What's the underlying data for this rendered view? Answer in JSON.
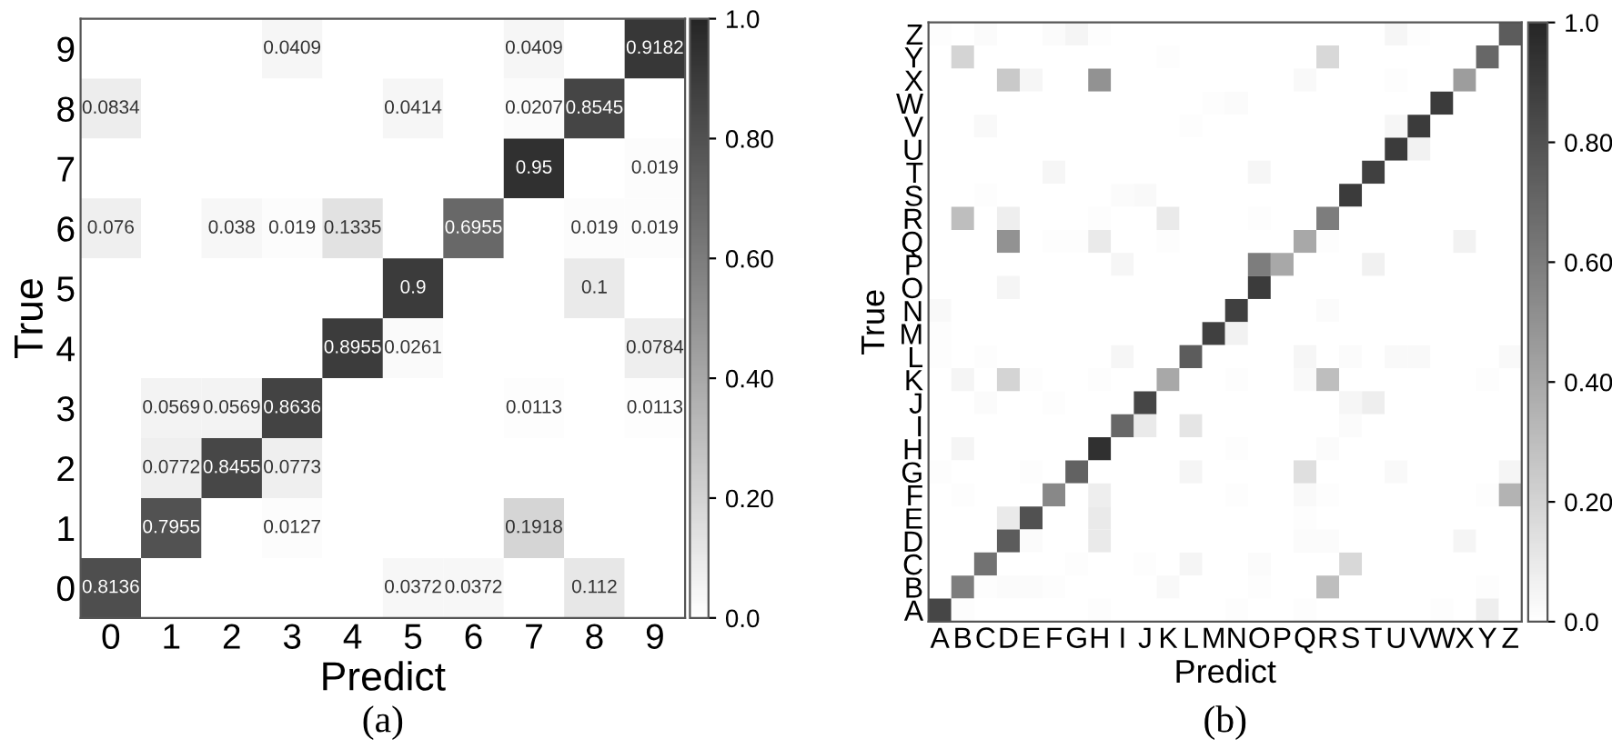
{
  "chart_data": [
    {
      "type": "heatmap",
      "xlabel": "Predict",
      "ylabel": "True",
      "annotations": [
        "(a)"
      ],
      "categories": [
        "0",
        "1",
        "2",
        "3",
        "4",
        "5",
        "6",
        "7",
        "8",
        "9"
      ],
      "y_categories": [
        "9",
        "8",
        "7",
        "6",
        "5",
        "4",
        "3",
        "2",
        "1",
        "0"
      ],
      "colors": [
        "#ffffff",
        "#262626"
      ],
      "clim": [
        0,
        1
      ],
      "cticks": [
        {
          "value": 0,
          "label": "0.0"
        },
        {
          "value": 0.2,
          "label": "0.20"
        },
        {
          "value": 0.4,
          "label": "0.40"
        },
        {
          "value": 0.6,
          "label": "0.60"
        },
        {
          "value": 0.8,
          "label": "0.80"
        },
        {
          "value": 1,
          "label": "1.0"
        }
      ],
      "cells": [
        [
          0,
          0,
          0,
          0.0409,
          0,
          0,
          0,
          0.0409,
          0,
          0.9182
        ],
        [
          0.0834,
          0,
          0,
          0,
          0,
          0.0414,
          0,
          0.0207,
          0.8545,
          0
        ],
        [
          0,
          0,
          0,
          0,
          0,
          0,
          0,
          0.95,
          0,
          0.019
        ],
        [
          0.076,
          0,
          0.038,
          0.019,
          0.1335,
          0,
          0.6955,
          0,
          0.019,
          0.019
        ],
        [
          0,
          0,
          0,
          0,
          0,
          0.9,
          0,
          0,
          0.1,
          0
        ],
        [
          0,
          0,
          0,
          0,
          0.8955,
          0.0261,
          0,
          0,
          0,
          0.0784
        ],
        [
          0,
          0.0569,
          0.0569,
          0.8636,
          0,
          0,
          0,
          0.0113,
          0,
          0.0113
        ],
        [
          0,
          0.0772,
          0.8455,
          0.0773,
          0,
          0,
          0,
          0,
          0,
          0
        ],
        [
          0,
          0.7955,
          0,
          0.0127,
          0,
          0,
          0,
          0.1918,
          0,
          0
        ],
        [
          0.8136,
          0,
          0,
          0,
          0,
          0.0372,
          0.0372,
          0,
          0.112,
          0
        ]
      ],
      "cell_labels": [
        [
          null,
          null,
          null,
          "0.0409",
          null,
          null,
          null,
          "0.0409",
          null,
          "0.9182"
        ],
        [
          "0.0834",
          null,
          null,
          null,
          null,
          "0.0414",
          null,
          "0.0207",
          "0.8545",
          null
        ],
        [
          null,
          null,
          null,
          null,
          null,
          null,
          null,
          "0.95",
          null,
          "0.019"
        ],
        [
          "0.076",
          null,
          "0.038",
          "0.019",
          "0.1335",
          null,
          "0.6955",
          null,
          "0.019",
          "0.019"
        ],
        [
          null,
          null,
          null,
          null,
          null,
          "0.9",
          null,
          null,
          "0.1",
          null
        ],
        [
          null,
          null,
          null,
          null,
          "0.8955",
          "0.0261",
          null,
          null,
          null,
          "0.0784"
        ],
        [
          null,
          "0.0569",
          "0.0569",
          "0.8636",
          null,
          null,
          null,
          "0.0113",
          null,
          "0.0113"
        ],
        [
          null,
          "0.0772",
          "0.8455",
          "0.0773",
          null,
          null,
          null,
          null,
          null,
          null
        ],
        [
          null,
          "0.7955",
          null,
          "0.0127",
          null,
          null,
          null,
          "0.1918",
          null,
          null
        ],
        [
          "0.8136",
          null,
          null,
          null,
          null,
          "0.0372",
          "0.0372",
          null,
          "0.112",
          null
        ]
      ]
    },
    {
      "type": "heatmap",
      "xlabel": "Predict",
      "ylabel": "True",
      "annotations": [
        "(b)"
      ],
      "categories": [
        "A",
        "B",
        "C",
        "D",
        "E",
        "F",
        "G",
        "H",
        "I",
        "J",
        "K",
        "L",
        "M",
        "N",
        "O",
        "P",
        "Q",
        "R",
        "S",
        "T",
        "U",
        "V",
        "W",
        "X",
        "Y",
        "Z"
      ],
      "y_categories": [
        "Z",
        "Y",
        "X",
        "W",
        "V",
        "U",
        "T",
        "S",
        "R",
        "Q",
        "P",
        "O",
        "N",
        "M",
        "L",
        "K",
        "J",
        "I",
        "H",
        "G",
        "F",
        "E",
        "D",
        "C",
        "B",
        "A"
      ],
      "colors": [
        "#ffffff",
        "#262626"
      ],
      "clim": [
        0,
        1
      ],
      "cticks": [
        {
          "value": 0,
          "label": "0.0"
        },
        {
          "value": 0.2,
          "label": "0.20"
        },
        {
          "value": 0.4,
          "label": "0.40"
        },
        {
          "value": 0.6,
          "label": "0.60"
        },
        {
          "value": 0.8,
          "label": "0.80"
        },
        {
          "value": 1,
          "label": "1.0"
        }
      ],
      "cells": [
        [
          0.01,
          0,
          0.02,
          0,
          0,
          0.02,
          0.05,
          0.01,
          0,
          0,
          0,
          0,
          0,
          0,
          0,
          0,
          0,
          0,
          0,
          0,
          0.04,
          0.01,
          0,
          0,
          0,
          0.75
        ],
        [
          0,
          0.2,
          0,
          0,
          0,
          0,
          0,
          0,
          0,
          0,
          0.01,
          0,
          0,
          0,
          0,
          0,
          0,
          0.18,
          0,
          0,
          0,
          0,
          0,
          0,
          0.7,
          0
        ],
        [
          0,
          0,
          0,
          0.25,
          0.04,
          0,
          0,
          0.5,
          0,
          0,
          0,
          0,
          0,
          0,
          0,
          0,
          0.03,
          0,
          0,
          0,
          0.01,
          0,
          0,
          0.45,
          0,
          0
        ],
        [
          0,
          0,
          0,
          0,
          0,
          0,
          0,
          0,
          0,
          0,
          0,
          0,
          0.01,
          0.02,
          0,
          0,
          0,
          0,
          0,
          0,
          0,
          0,
          0.9,
          0,
          0,
          0
        ],
        [
          0,
          0,
          0.03,
          0,
          0,
          0,
          0,
          0,
          0,
          0,
          0,
          0.01,
          0,
          0,
          0,
          0,
          0,
          0,
          0,
          0,
          0.04,
          0.9,
          0,
          0,
          0,
          0
        ],
        [
          0,
          0,
          0,
          0,
          0,
          0,
          0,
          0,
          0,
          0,
          0,
          0,
          0,
          0,
          0,
          0,
          0,
          0,
          0,
          0,
          0.9,
          0.06,
          0,
          0,
          0,
          0
        ],
        [
          0,
          0,
          0,
          0,
          0,
          0.04,
          0,
          0,
          0,
          0,
          0,
          0,
          0,
          0,
          0.04,
          0,
          0,
          0,
          0,
          0.88,
          0,
          0,
          0,
          0,
          0,
          0
        ],
        [
          0,
          0,
          0.01,
          0,
          0,
          0,
          0,
          0,
          0.02,
          0.03,
          0,
          0,
          0,
          0,
          0,
          0,
          0,
          0,
          0.9,
          0,
          0,
          0,
          0,
          0,
          0,
          0
        ],
        [
          0,
          0.3,
          0,
          0.08,
          0,
          0,
          0,
          0.01,
          0,
          0,
          0.1,
          0,
          0,
          0,
          0.01,
          0,
          0,
          0.6,
          0,
          0,
          0,
          0,
          0,
          0,
          0,
          0
        ],
        [
          0,
          0,
          0,
          0.5,
          0,
          0.01,
          0.01,
          0.1,
          0,
          0,
          0.01,
          0,
          0,
          0,
          0,
          0,
          0.4,
          0.01,
          0,
          0,
          0,
          0,
          0,
          0.06,
          0,
          0
        ],
        [
          0,
          0,
          0,
          0,
          0,
          0,
          0,
          0,
          0.04,
          0,
          0,
          0,
          0,
          0,
          0.6,
          0.4,
          0,
          0,
          0,
          0.07,
          0,
          0,
          0,
          0,
          0,
          0
        ],
        [
          0,
          0,
          0,
          0.05,
          0,
          0,
          0,
          0,
          0,
          0,
          0,
          0,
          0,
          0,
          0.9,
          0,
          0,
          0,
          0,
          0,
          0,
          0,
          0,
          0,
          0,
          0
        ],
        [
          0.03,
          0,
          0,
          0,
          0,
          0,
          0,
          0,
          0,
          0,
          0,
          0,
          0,
          0.88,
          0,
          0,
          0,
          0.02,
          0,
          0,
          0,
          0,
          0,
          0,
          0,
          0
        ],
        [
          0.01,
          0,
          0,
          0,
          0,
          0,
          0,
          0,
          0,
          0,
          0,
          0,
          0.88,
          0.06,
          0,
          0,
          0,
          0,
          0,
          0,
          0,
          0,
          0,
          0,
          0,
          0
        ],
        [
          0.01,
          0,
          0.01,
          0,
          0,
          0,
          0,
          0,
          0.04,
          0,
          0,
          0.75,
          0,
          0,
          0,
          0,
          0.04,
          0,
          0.02,
          0,
          0.03,
          0.03,
          0,
          0,
          0,
          0.03
        ],
        [
          0,
          0.05,
          0,
          0.2,
          0.01,
          0,
          0,
          0.01,
          0,
          0,
          0.4,
          0,
          0,
          0.01,
          0,
          0,
          0.03,
          0.3,
          0,
          0,
          0,
          0,
          0,
          0,
          0.01,
          0
        ],
        [
          0,
          0,
          0.02,
          0,
          0,
          0.01,
          0,
          0,
          0,
          0.85,
          0,
          0,
          0,
          0,
          0,
          0,
          0,
          0,
          0.04,
          0.08,
          0,
          0,
          0,
          0,
          0,
          0
        ],
        [
          0,
          0,
          0,
          0,
          0,
          0,
          0,
          0,
          0.7,
          0.1,
          0,
          0.12,
          0,
          0,
          0,
          0,
          0,
          0,
          0.02,
          0,
          0,
          0,
          0,
          0,
          0,
          0
        ],
        [
          0,
          0.05,
          0,
          0,
          0,
          0,
          0,
          0.95,
          0,
          0,
          0,
          0,
          0,
          0.01,
          0,
          0,
          0,
          0.02,
          0,
          0,
          0,
          0,
          0,
          0,
          0,
          0
        ],
        [
          0.01,
          0,
          0,
          0,
          0.01,
          0,
          0.72,
          0,
          0,
          0,
          0,
          0.05,
          0,
          0,
          0,
          0,
          0.15,
          0,
          0,
          0,
          0.03,
          0,
          0,
          0,
          0,
          0.05
        ],
        [
          0,
          0.01,
          0,
          0,
          0,
          0.55,
          0,
          0.08,
          0,
          0,
          0,
          0,
          0,
          0.01,
          0,
          0,
          0.03,
          0.01,
          0,
          0,
          0,
          0,
          0,
          0,
          0.01,
          0.35
        ],
        [
          0,
          0,
          0,
          0.1,
          0.8,
          0,
          0,
          0.1,
          0,
          0,
          0,
          0,
          0,
          0,
          0,
          0,
          0.01,
          0,
          0,
          0,
          0,
          0,
          0,
          0,
          0,
          0
        ],
        [
          0,
          0,
          0,
          0.75,
          0.02,
          0,
          0,
          0.1,
          0,
          0,
          0,
          0,
          0,
          0,
          0,
          0,
          0.02,
          0.02,
          0,
          0,
          0,
          0,
          0,
          0.05,
          0,
          0
        ],
        [
          0,
          0,
          0.65,
          0,
          0,
          0,
          0.01,
          0,
          0,
          0.01,
          0,
          0.05,
          0,
          0,
          0.02,
          0,
          0,
          0,
          0.18,
          0,
          0,
          0,
          0,
          0,
          0,
          0
        ],
        [
          0,
          0.6,
          0.01,
          0.02,
          0.02,
          0.01,
          0,
          0,
          0,
          0,
          0.03,
          0,
          0,
          0,
          0.01,
          0,
          0,
          0.3,
          0,
          0,
          0,
          0,
          0,
          0,
          0.01,
          0
        ],
        [
          0.85,
          0.01,
          0,
          0,
          0,
          0,
          0,
          0.01,
          0,
          0,
          0,
          0,
          0,
          0.01,
          0,
          0,
          0.01,
          0,
          0,
          0,
          0,
          0,
          0.01,
          0,
          0.08,
          0
        ]
      ]
    }
  ]
}
